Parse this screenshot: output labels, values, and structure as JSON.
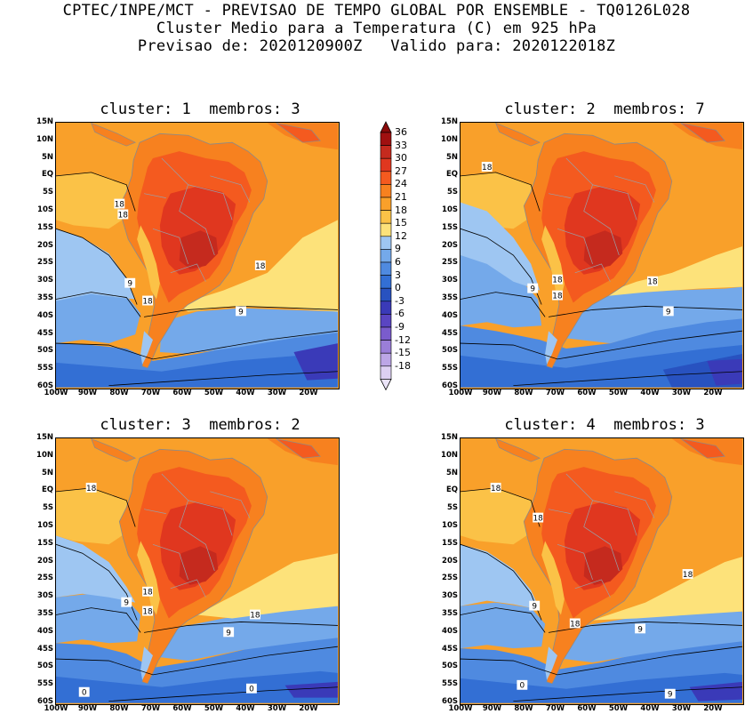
{
  "header": {
    "line1": "CPTEC/INPE/MCT - PREVISAO DE TEMPO GLOBAL POR ENSEMBLE - TQ0126L028",
    "line2": "Cluster Medio para a Temperatura (C) em 925 hPa",
    "line3": "Previsao de: 2020120900Z   Valido para: 2020122018Z"
  },
  "panels": [
    {
      "title": "cluster: 1  membros: 3",
      "contour_labels": [
        "18",
        "18",
        "18",
        "9",
        "18",
        "9"
      ]
    },
    {
      "title": "cluster: 2  membros: 7",
      "contour_labels": [
        "18",
        "18",
        "18",
        "18",
        "9",
        "9"
      ]
    },
    {
      "title": "cluster: 3  membros: 2",
      "contour_labels": [
        "18",
        "18",
        "18",
        "9",
        "18",
        "9",
        "0",
        "0"
      ]
    },
    {
      "title": "cluster: 4  membros: 3",
      "contour_labels": [
        "18",
        "18",
        "18",
        "9",
        "18",
        "9",
        "0",
        "9"
      ]
    }
  ],
  "lat_ticks": [
    "15N",
    "10N",
    "5N",
    "EQ",
    "5S",
    "10S",
    "15S",
    "20S",
    "25S",
    "30S",
    "35S",
    "40S",
    "45S",
    "50S",
    "55S",
    "60S"
  ],
  "lon_ticks": [
    "100W",
    "90W",
    "80W",
    "70W",
    "60W",
    "50W",
    "40W",
    "30W",
    "20W"
  ],
  "colorbar": {
    "labels": [
      "36",
      "33",
      "30",
      "27",
      "24",
      "21",
      "18",
      "15",
      "12",
      "9",
      "6",
      "3",
      "0",
      "-3",
      "-6",
      "-9",
      "-12",
      "-15",
      "-18"
    ],
    "colors": [
      "#a01010",
      "#c52a1e",
      "#e0371f",
      "#f45a1f",
      "#f7811f",
      "#f9a02a",
      "#fbc247",
      "#fde27a",
      "#9ec6f2",
      "#74a9ea",
      "#4f8ae0",
      "#336fd4",
      "#2852c0",
      "#3a3ab8",
      "#5a45c2",
      "#7a5ccc",
      "#9a7ed8",
      "#bca6e6",
      "#ddd0f2"
    ],
    "top_color": "#8a0a0a",
    "bottom_color": "#ebe4f8"
  }
}
